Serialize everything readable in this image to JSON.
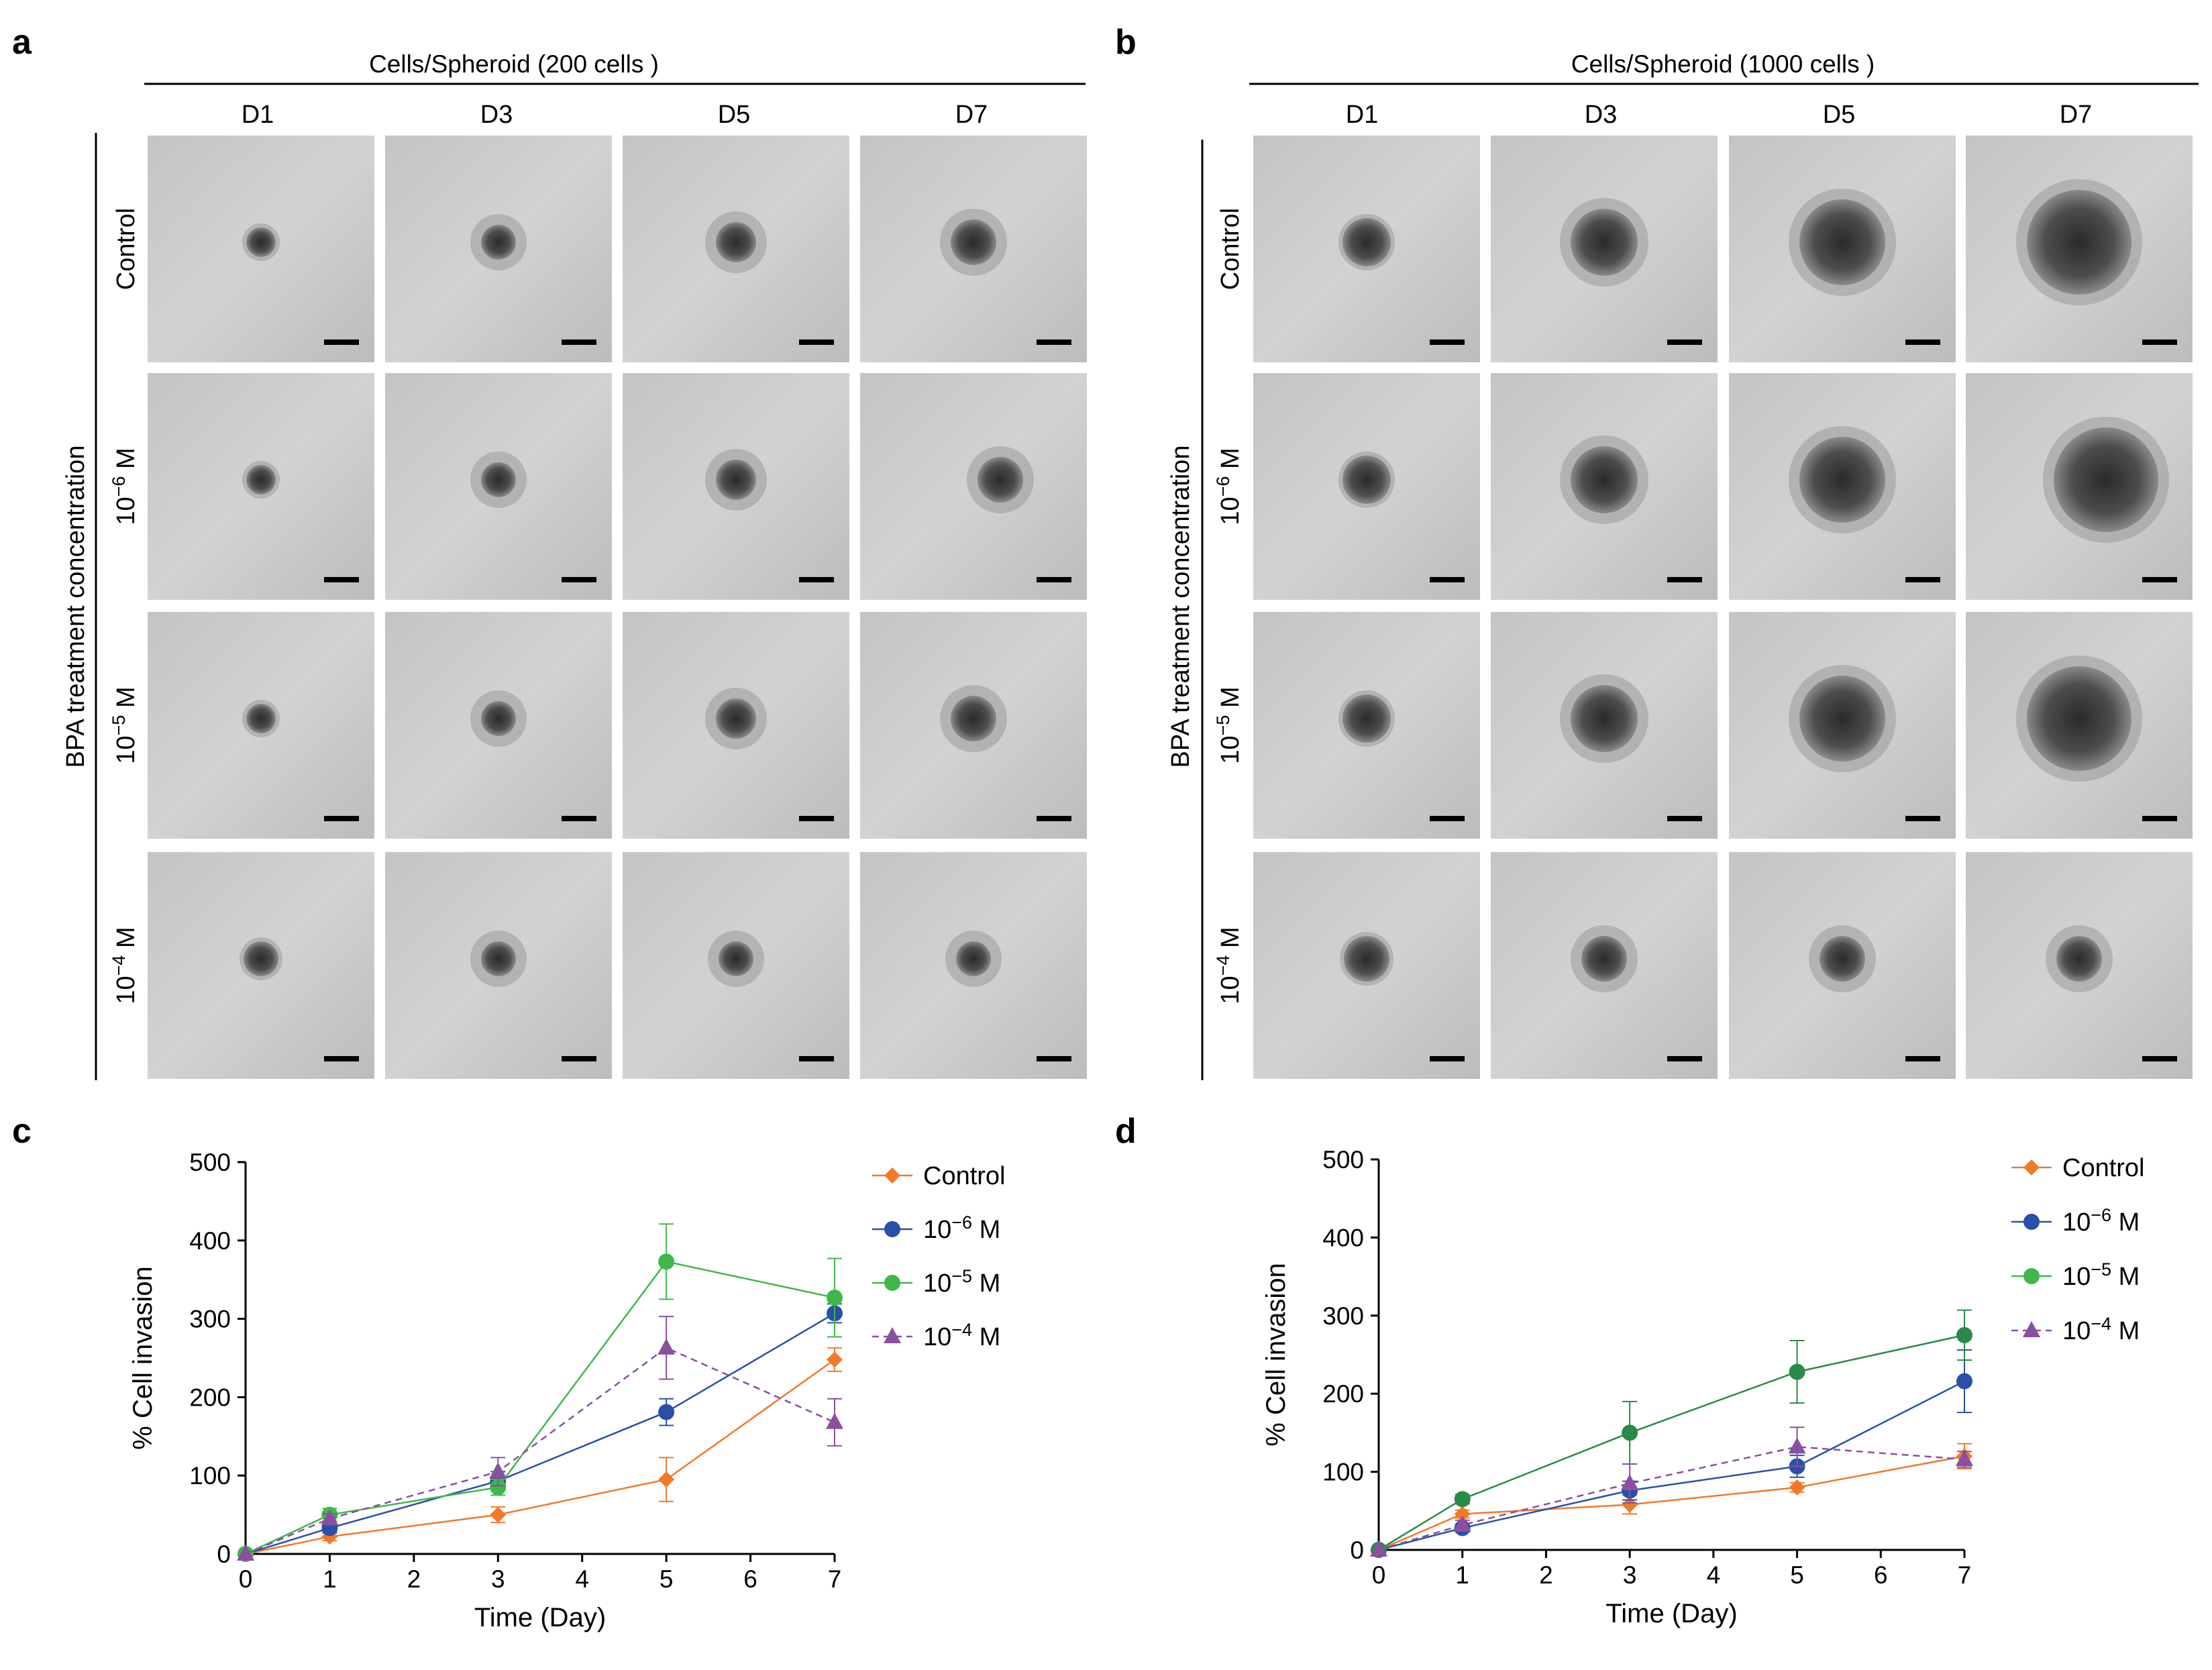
{
  "panels": {
    "a": {
      "label": "a",
      "header": "Cells/Spheroid (200 cells )",
      "side_label": "BPA treatment concentration",
      "columns": [
        "D1",
        "D3",
        "D5",
        "D7"
      ]
    },
    "b": {
      "label": "b",
      "header": "Cells/Spheroid (1000 cells )",
      "side_label": "BPA treatment concentration",
      "columns": [
        "D1",
        "D3",
        "D5",
        "D7"
      ]
    },
    "c": {
      "label": "c"
    },
    "d": {
      "label": "d"
    }
  },
  "rows": [
    {
      "label": "Control",
      "base": "",
      "exp": ""
    },
    {
      "label": "",
      "base": "10",
      "exp": "−6",
      "unit": " M"
    },
    {
      "label": "",
      "base": "10",
      "exp": "−5",
      "unit": " M"
    },
    {
      "label": "",
      "base": "10",
      "exp": "−4",
      "unit": " M"
    }
  ],
  "colors": {
    "control": "#f07a2a",
    "m6": "#2a4fa8",
    "m5": "#3fb84a",
    "m5_dark": "#2a8a48",
    "m4": "#8a4fa0"
  },
  "legend": [
    {
      "key": "control",
      "text": "Control",
      "base": "",
      "exp": "",
      "unit": ""
    },
    {
      "key": "m6",
      "text": "",
      "base": "10",
      "exp": "−6",
      "unit": " M"
    },
    {
      "key": "m5",
      "text": "",
      "base": "10",
      "exp": "−5",
      "unit": " M"
    },
    {
      "key": "m4",
      "text": "",
      "base": "10",
      "exp": "−4",
      "unit": " M"
    }
  ],
  "chart_data": [
    {
      "panel": "c",
      "type": "line",
      "xlabel": "Time (Day)",
      "ylabel": "% Cell invasion",
      "xlim": [
        0,
        7
      ],
      "ylim": [
        0,
        500
      ],
      "xticks": [
        0,
        1,
        2,
        3,
        4,
        5,
        6,
        7
      ],
      "yticks": [
        0,
        100,
        200,
        300,
        400,
        500
      ],
      "x": [
        0,
        1,
        3,
        5,
        7
      ],
      "series": [
        {
          "name": "Control",
          "color_key": "control",
          "marker": "diamond",
          "dashed": false,
          "values": [
            0,
            22,
            50,
            95,
            248
          ],
          "errors": [
            0,
            5,
            10,
            28,
            15
          ]
        },
        {
          "name": "10−6 M",
          "color_key": "m6",
          "marker": "circle",
          "dashed": false,
          "values": [
            0,
            33,
            93,
            181,
            307
          ],
          "errors": [
            0,
            6,
            12,
            17,
            12
          ]
        },
        {
          "name": "10−5 M",
          "color_key": "m5",
          "marker": "circle",
          "dashed": false,
          "values": [
            0,
            50,
            85,
            373,
            327
          ],
          "errors": [
            0,
            8,
            10,
            48,
            50
          ]
        },
        {
          "name": "10−4 M",
          "color_key": "m4",
          "marker": "triangle",
          "dashed": true,
          "values": [
            0,
            45,
            105,
            263,
            168
          ],
          "errors": [
            0,
            6,
            18,
            40,
            30
          ]
        }
      ]
    },
    {
      "panel": "d",
      "type": "line",
      "xlabel": "Time (Day)",
      "ylabel": "% Cell invasion",
      "xlim": [
        0,
        7
      ],
      "ylim": [
        0,
        500
      ],
      "xticks": [
        0,
        1,
        2,
        3,
        4,
        5,
        6,
        7
      ],
      "yticks": [
        0,
        100,
        200,
        300,
        400,
        500
      ],
      "x": [
        0,
        1,
        3,
        5,
        7
      ],
      "series": [
        {
          "name": "Control",
          "color_key": "control",
          "marker": "diamond",
          "dashed": false,
          "values": [
            0,
            46,
            58,
            80,
            120
          ],
          "errors": [
            0,
            5,
            12,
            6,
            16
          ]
        },
        {
          "name": "10−6 M",
          "color_key": "m6",
          "marker": "circle",
          "dashed": false,
          "values": [
            0,
            28,
            76,
            107,
            216
          ],
          "errors": [
            0,
            5,
            12,
            14,
            40
          ]
        },
        {
          "name": "10−5 M",
          "color_key": "m5_dark",
          "marker": "circle",
          "dashed": false,
          "values": [
            0,
            65,
            150,
            228,
            275
          ],
          "errors": [
            0,
            6,
            40,
            40,
            32
          ]
        },
        {
          "name": "10−4 M",
          "color_key": "m4",
          "marker": "triangle",
          "dashed": true,
          "values": [
            0,
            32,
            85,
            132,
            116
          ],
          "errors": [
            0,
            6,
            25,
            25,
            10
          ]
        }
      ]
    }
  ]
}
